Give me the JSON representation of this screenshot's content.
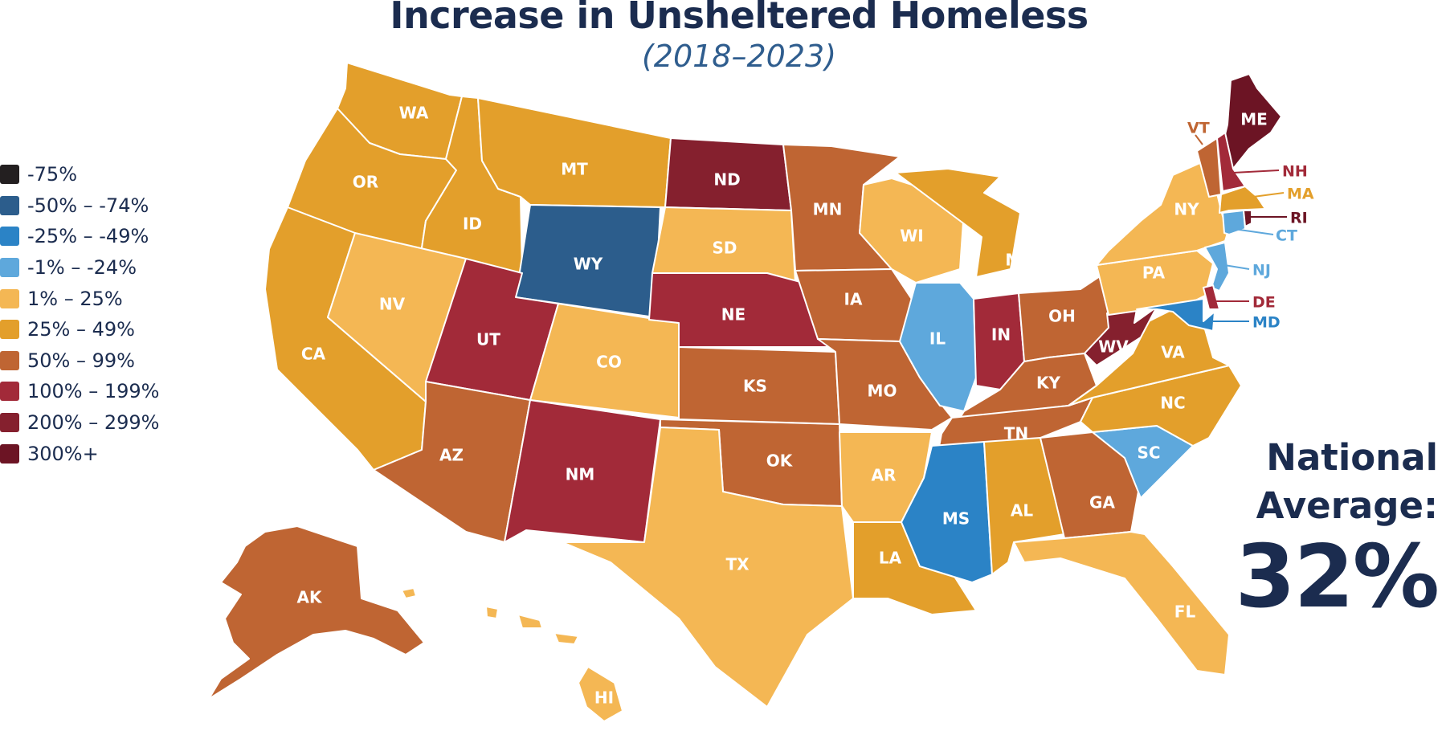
{
  "title": "Increase in Unsheltered Homeless",
  "subtitle": "(2018–2023)",
  "legend": [
    {
      "label": "-75%",
      "color": "#231f20"
    },
    {
      "label": "-50% – -74%",
      "color": "#2c5d8c"
    },
    {
      "label": "-25% – -49%",
      "color": "#2b83c6"
    },
    {
      "label": "-1% – -24%",
      "color": "#5ea8dc"
    },
    {
      "label": "1% – 25%",
      "color": "#f4b754"
    },
    {
      "label": "25% – 49%",
      "color": "#e39f2b"
    },
    {
      "label": "50% – 99%",
      "color": "#bf6533"
    },
    {
      "label": "100% – 199%",
      "color": "#a22a39"
    },
    {
      "label": "200% – 299%",
      "color": "#85202e"
    },
    {
      "label": "300%+",
      "color": "#6c1424"
    }
  ],
  "national": {
    "label_line1": "National",
    "label_line2": "Average:",
    "value": "32%"
  },
  "states": {
    "WA": {
      "label": "WA",
      "bin": 5
    },
    "OR": {
      "label": "OR",
      "bin": 5
    },
    "CA": {
      "label": "CA",
      "bin": 5
    },
    "ID": {
      "label": "ID",
      "bin": 5
    },
    "NV": {
      "label": "NV",
      "bin": 4
    },
    "MT": {
      "label": "MT",
      "bin": 5
    },
    "WY": {
      "label": "WY",
      "bin": 1
    },
    "UT": {
      "label": "UT",
      "bin": 7
    },
    "AZ": {
      "label": "AZ",
      "bin": 6
    },
    "CO": {
      "label": "CO",
      "bin": 4
    },
    "NM": {
      "label": "NM",
      "bin": 7
    },
    "ND": {
      "label": "ND",
      "bin": 8
    },
    "SD": {
      "label": "SD",
      "bin": 4
    },
    "NE": {
      "label": "NE",
      "bin": 7
    },
    "KS": {
      "label": "KS",
      "bin": 6
    },
    "OK": {
      "label": "OK",
      "bin": 6
    },
    "TX": {
      "label": "TX",
      "bin": 4
    },
    "MN": {
      "label": "MN",
      "bin": 6
    },
    "IA": {
      "label": "IA",
      "bin": 6
    },
    "MO": {
      "label": "MO",
      "bin": 6
    },
    "AR": {
      "label": "AR",
      "bin": 4
    },
    "LA": {
      "label": "LA",
      "bin": 5
    },
    "WI": {
      "label": "WI",
      "bin": 4
    },
    "IL": {
      "label": "IL",
      "bin": 3
    },
    "MI": {
      "label": "MI",
      "bin": 5
    },
    "IN": {
      "label": "IN",
      "bin": 7
    },
    "OH": {
      "label": "OH",
      "bin": 6
    },
    "KY": {
      "label": "KY",
      "bin": 6
    },
    "TN": {
      "label": "TN",
      "bin": 6
    },
    "MS": {
      "label": "MS",
      "bin": 2
    },
    "AL": {
      "label": "AL",
      "bin": 5
    },
    "GA": {
      "label": "GA",
      "bin": 6
    },
    "FL": {
      "label": "FL",
      "bin": 4
    },
    "SC": {
      "label": "SC",
      "bin": 3
    },
    "NC": {
      "label": "NC",
      "bin": 5
    },
    "VA": {
      "label": "VA",
      "bin": 5
    },
    "WV": {
      "label": "WV",
      "bin": 8
    },
    "PA": {
      "label": "PA",
      "bin": 4
    },
    "NY": {
      "label": "NY",
      "bin": 4
    },
    "ME": {
      "label": "ME",
      "bin": 9
    },
    "VT": {
      "label": "VT",
      "bin": 6
    },
    "NH": {
      "label": "NH",
      "bin": 7
    },
    "MA": {
      "label": "MA",
      "bin": 5
    },
    "RI": {
      "label": "RI",
      "bin": 9
    },
    "CT": {
      "label": "CT",
      "bin": 3
    },
    "NJ": {
      "label": "NJ",
      "bin": 3
    },
    "DE": {
      "label": "DE",
      "bin": 7
    },
    "MD": {
      "label": "MD",
      "bin": 2
    },
    "AK": {
      "label": "AK",
      "bin": 6
    },
    "HI": {
      "label": "HI",
      "bin": 4
    }
  }
}
